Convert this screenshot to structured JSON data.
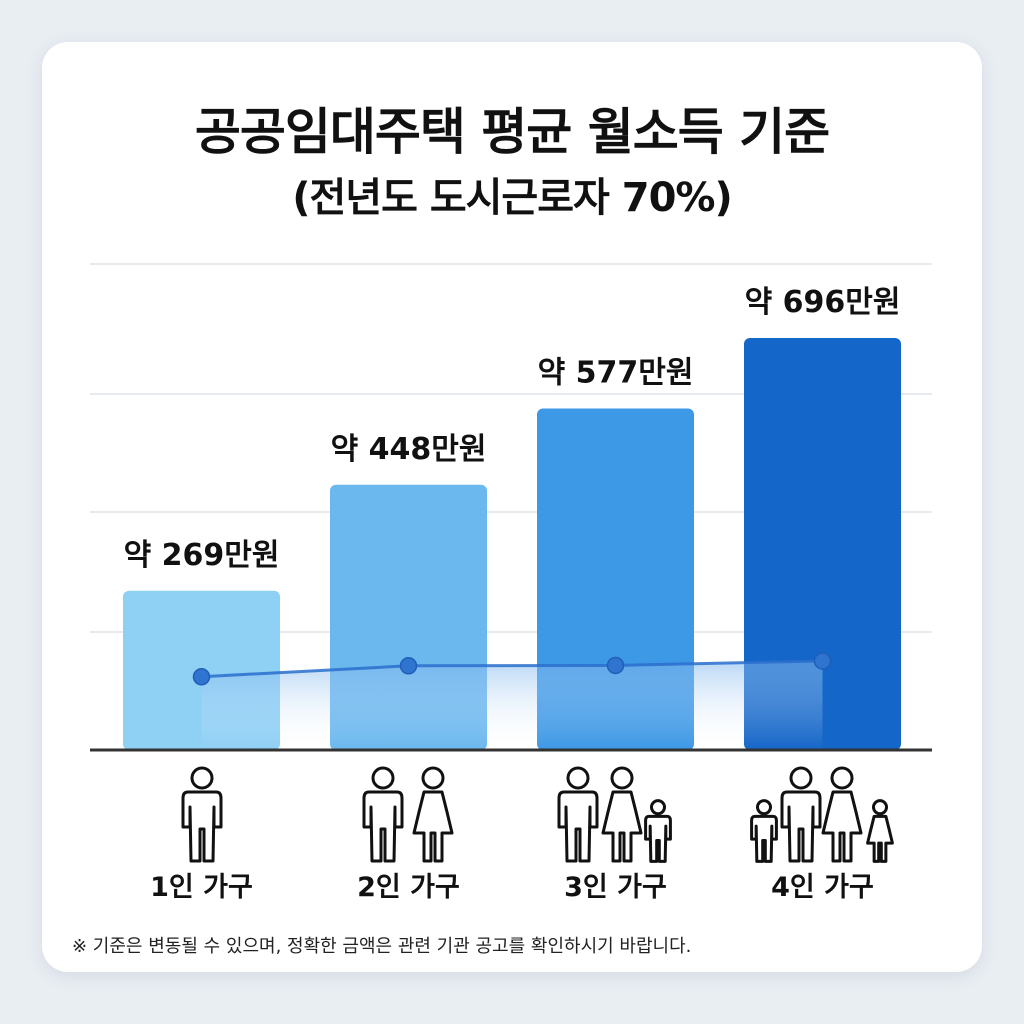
{
  "title": "공공임대주택 평균 월소득 기준",
  "subtitle": "(전년도 도시근로자 70%)",
  "chart_data": {
    "type": "bar",
    "title": "공공임대주택 평균 월소득 기준",
    "subtitle": "(전년도 도시근로자 70%)",
    "categories": [
      "1인 가구",
      "2인 가구",
      "3인 가구",
      "4인 가구"
    ],
    "values": [
      269,
      448,
      577,
      696
    ],
    "value_labels": [
      "약 269만원",
      "약 448만원",
      "약 577만원",
      "약 696만원"
    ],
    "trend_line": true,
    "ylim": [
      0,
      800
    ],
    "grid": true,
    "icons": [
      "single-person-icon",
      "couple-icon",
      "family-of-three-icon",
      "family-of-four-icon"
    ],
    "colors": [
      "#8fd0f5",
      "#6bb8ef",
      "#3d98e6",
      "#1466c8"
    ],
    "line_color": "#2a6fcc"
  },
  "footnote": "※ 기준은 변동될 수 있으며, 정확한 금액은 관련 기관 공고를 확인하시기 바랍니다."
}
